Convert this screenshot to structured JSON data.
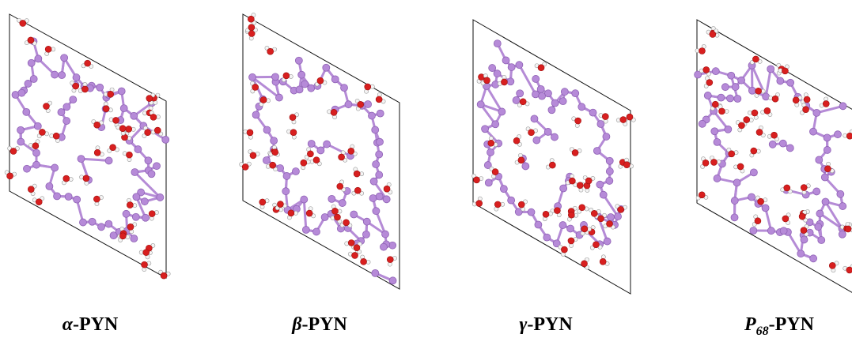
{
  "panels": [
    {
      "prefix": "α",
      "suffix": "-PYN"
    },
    {
      "prefix": "β",
      "suffix": "-PYN"
    },
    {
      "prefix": "γ",
      "suffix": "-PYN"
    },
    {
      "prefix": "P",
      "subscript": "68",
      "suffix": "-PYN"
    }
  ]
}
